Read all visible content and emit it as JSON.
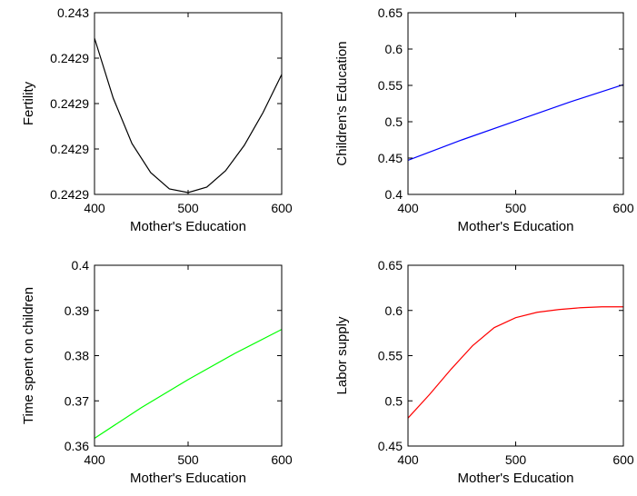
{
  "chart_data": [
    {
      "type": "line",
      "title": "",
      "xlabel": "Mother's Education",
      "ylabel": "Fertility",
      "xlim": [
        400,
        600
      ],
      "ylim": [
        0.2429,
        0.243
      ],
      "xticks": [
        400,
        500,
        600
      ],
      "xtick_labels": [
        "400",
        "500",
        "600"
      ],
      "yticks": [
        0.2429,
        0.242925,
        0.24295,
        0.242975,
        0.243
      ],
      "ytick_labels": [
        "0.2429",
        "0.2429",
        "0.2429",
        "0.2429",
        "0.243"
      ],
      "grid": false,
      "series": [
        {
          "color": "#000000",
          "x": [
            400,
            420,
            440,
            460,
            480,
            500,
            520,
            540,
            560,
            580,
            600
          ],
          "y": [
            0.242986,
            0.242953,
            0.242928,
            0.242912,
            0.242903,
            0.242901,
            0.242904,
            0.242913,
            0.242927,
            0.242945,
            0.242966
          ]
        }
      ]
    },
    {
      "type": "line",
      "title": "",
      "xlabel": "Mother's Education",
      "ylabel": "Children's Education",
      "xlim": [
        400,
        600
      ],
      "ylim": [
        0.4,
        0.65
      ],
      "xticks": [
        400,
        500,
        600
      ],
      "xtick_labels": [
        "400",
        "500",
        "600"
      ],
      "yticks": [
        0.4,
        0.45,
        0.5,
        0.55,
        0.6,
        0.65
      ],
      "ytick_labels": [
        "0.4",
        "0.45",
        "0.5",
        "0.55",
        "0.6",
        "0.65"
      ],
      "grid": false,
      "series": [
        {
          "color": "#0000ff",
          "x": [
            400,
            450,
            500,
            550,
            600
          ],
          "y": [
            0.447,
            0.475,
            0.501,
            0.527,
            0.551
          ]
        }
      ]
    },
    {
      "type": "line",
      "title": "",
      "xlabel": "Mother's Education",
      "ylabel": "Time spent on children",
      "xlim": [
        400,
        600
      ],
      "ylim": [
        0.36,
        0.4
      ],
      "xticks": [
        400,
        500,
        600
      ],
      "xtick_labels": [
        "400",
        "500",
        "600"
      ],
      "yticks": [
        0.36,
        0.37,
        0.38,
        0.39,
        0.4
      ],
      "ytick_labels": [
        "0.36",
        "0.37",
        "0.38",
        "0.39",
        "0.4"
      ],
      "grid": false,
      "series": [
        {
          "color": "#00ff00",
          "x": [
            400,
            450,
            500,
            550,
            600
          ],
          "y": [
            0.3617,
            0.3685,
            0.3747,
            0.3805,
            0.3858
          ]
        }
      ]
    },
    {
      "type": "line",
      "title": "",
      "xlabel": "Mother's Education",
      "ylabel": "Labor supply",
      "xlim": [
        400,
        600
      ],
      "ylim": [
        0.45,
        0.65
      ],
      "xticks": [
        400,
        500,
        600
      ],
      "xtick_labels": [
        "400",
        "500",
        "600"
      ],
      "yticks": [
        0.45,
        0.5,
        0.55,
        0.6,
        0.65
      ],
      "ytick_labels": [
        "0.45",
        "0.5",
        "0.55",
        "0.6",
        "0.65"
      ],
      "grid": false,
      "series": [
        {
          "color": "#ff0000",
          "x": [
            400,
            420,
            440,
            460,
            480,
            500,
            520,
            540,
            560,
            580,
            600
          ],
          "y": [
            0.481,
            0.507,
            0.535,
            0.561,
            0.581,
            0.592,
            0.598,
            0.601,
            0.603,
            0.604,
            0.604
          ]
        }
      ]
    }
  ]
}
